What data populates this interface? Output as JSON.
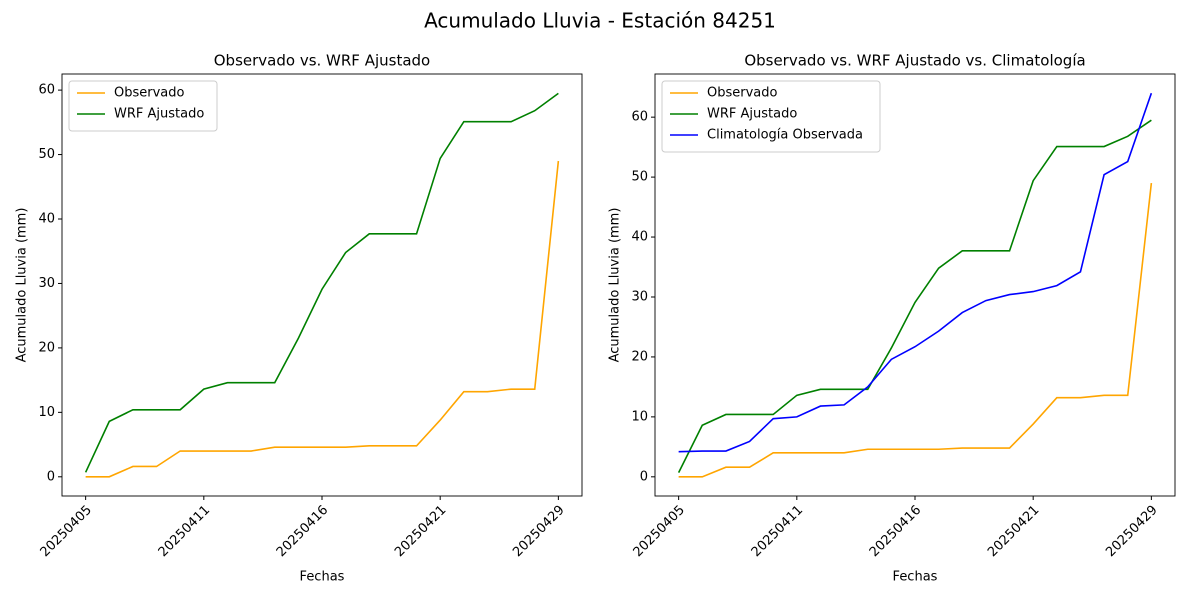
{
  "title": "Acumulado Lluvia - Estación 84251",
  "chart_data": [
    {
      "type": "line",
      "title": "Observado vs. WRF Ajustado",
      "x_label": "Fechas",
      "y_label": "Acumulado Lluvia (mm)",
      "categories": [
        "20250405",
        null,
        null,
        null,
        null,
        "20250411",
        null,
        null,
        null,
        null,
        "20250416",
        null,
        null,
        null,
        null,
        "20250421",
        null,
        null,
        null,
        null,
        "20250429"
      ],
      "series": [
        {
          "name": "Observado",
          "color": "orange",
          "values": [
            0,
            0,
            1.6,
            1.6,
            4,
            4,
            4,
            4,
            4.6,
            4.6,
            4.6,
            4.6,
            4.8,
            4.8,
            4.8,
            8.8,
            13.2,
            13.2,
            13.6,
            13.6,
            49
          ]
        },
        {
          "name": "WRF Ajustado",
          "color": "green",
          "values": [
            0.7,
            8.6,
            10.4,
            10.4,
            10.4,
            13.6,
            14.6,
            14.6,
            14.6,
            21.5,
            29.1,
            34.8,
            37.7,
            37.7,
            37.7,
            49.4,
            55.1,
            55.1,
            55.1,
            56.8,
            59.5
          ]
        }
      ],
      "ylim": [
        -2.98,
        62.5
      ],
      "yticks": [
        0,
        10,
        20,
        30,
        40,
        50,
        60
      ],
      "legend": "upper left",
      "grid": false
    },
    {
      "type": "line",
      "title": "Observado vs. WRF Ajustado vs. Climatología",
      "x_label": "Fechas",
      "y_label": "Acumulado Lluvia (mm)",
      "categories": [
        "20250405",
        null,
        null,
        null,
        null,
        "20250411",
        null,
        null,
        null,
        null,
        "20250416",
        null,
        null,
        null,
        null,
        "20250421",
        null,
        null,
        null,
        null,
        "20250429"
      ],
      "series": [
        {
          "name": "Observado",
          "color": "orange",
          "values": [
            0,
            0,
            1.6,
            1.6,
            4,
            4,
            4,
            4,
            4.6,
            4.6,
            4.6,
            4.6,
            4.8,
            4.8,
            4.8,
            8.8,
            13.2,
            13.2,
            13.6,
            13.6,
            49
          ]
        },
        {
          "name": "WRF Ajustado",
          "color": "green",
          "values": [
            0.7,
            8.6,
            10.4,
            10.4,
            10.4,
            13.6,
            14.6,
            14.6,
            14.6,
            21.5,
            29.1,
            34.8,
            37.7,
            37.7,
            37.7,
            49.4,
            55.1,
            55.1,
            55.1,
            56.8,
            59.5
          ]
        },
        {
          "name": "Climatología Observada",
          "color": "blue",
          "values": [
            4.2,
            4.3,
            4.3,
            5.9,
            9.7,
            10.0,
            11.8,
            12.0,
            15.0,
            19.6,
            21.7,
            24.3,
            27.4,
            29.4,
            30.4,
            30.9,
            31.9,
            34.2,
            50.4,
            52.6,
            64.0
          ]
        }
      ],
      "ylim": [
        -3.2,
        67.2
      ],
      "yticks": [
        0,
        10,
        20,
        30,
        40,
        50,
        60
      ],
      "legend": "upper left",
      "grid": false
    }
  ]
}
